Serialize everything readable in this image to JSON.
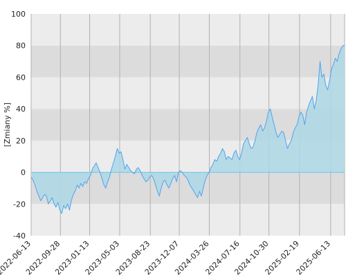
{
  "chart_data": {
    "type": "area",
    "title": "",
    "xlabel": "",
    "ylabel": "[Zmiany %]",
    "ylim": [
      -40,
      100
    ],
    "xlim": [
      "2022-06-13",
      "2025-08-03"
    ],
    "yticks": [
      -40,
      -20,
      0,
      20,
      40,
      60,
      80,
      100
    ],
    "xticks": [
      "2022-06-13",
      "2022-09-28",
      "2023-01-13",
      "2023-05-03",
      "2023-08-23",
      "2023-12-07",
      "2024-03-26",
      "2024-07-16",
      "2024-10-30",
      "2025-02-19",
      "2025-06-13"
    ],
    "grid": true,
    "legend": "none",
    "colors": {
      "line": "#4ea3ee",
      "fill": "#add8e6",
      "band_light": "#ececec",
      "band_dark": "#dcdcdc",
      "gridline": "#b0b0b0",
      "zero_line": "#66c7e8"
    },
    "series": [
      {
        "values": [
          [
            "2022-06-13",
            -3
          ],
          [
            "2022-06-20",
            -5
          ],
          [
            "2022-06-27",
            -8
          ],
          [
            "2022-07-04",
            -12
          ],
          [
            "2022-07-11",
            -15
          ],
          [
            "2022-07-18",
            -18
          ],
          [
            "2022-07-25",
            -16
          ],
          [
            "2022-08-01",
            -14
          ],
          [
            "2022-08-08",
            -15
          ],
          [
            "2022-08-15",
            -20
          ],
          [
            "2022-08-22",
            -18
          ],
          [
            "2022-08-29",
            -16
          ],
          [
            "2022-09-05",
            -20
          ],
          [
            "2022-09-12",
            -22
          ],
          [
            "2022-09-19",
            -19
          ],
          [
            "2022-09-26",
            -24
          ],
          [
            "2022-10-03",
            -26
          ],
          [
            "2022-10-10",
            -21
          ],
          [
            "2022-10-17",
            -23
          ],
          [
            "2022-10-24",
            -20
          ],
          [
            "2022-10-31",
            -24
          ],
          [
            "2022-11-07",
            -18
          ],
          [
            "2022-11-14",
            -14
          ],
          [
            "2022-11-21",
            -12
          ],
          [
            "2022-11-28",
            -8
          ],
          [
            "2022-12-05",
            -10
          ],
          [
            "2022-12-12",
            -7
          ],
          [
            "2022-12-19",
            -9
          ],
          [
            "2022-12-26",
            -6
          ],
          [
            "2023-01-02",
            -7
          ],
          [
            "2023-01-09",
            -4
          ],
          [
            "2023-01-16",
            -2
          ],
          [
            "2023-01-23",
            2
          ],
          [
            "2023-01-30",
            4
          ],
          [
            "2023-02-06",
            6
          ],
          [
            "2023-02-13",
            3
          ],
          [
            "2023-02-20",
            0
          ],
          [
            "2023-02-27",
            -4
          ],
          [
            "2023-03-06",
            -8
          ],
          [
            "2023-03-13",
            -10
          ],
          [
            "2023-03-20",
            -6
          ],
          [
            "2023-03-27",
            -3
          ],
          [
            "2023-04-03",
            2
          ],
          [
            "2023-04-10",
            6
          ],
          [
            "2023-04-17",
            10
          ],
          [
            "2023-04-24",
            15
          ],
          [
            "2023-05-01",
            12
          ],
          [
            "2023-05-08",
            13
          ],
          [
            "2023-05-15",
            8
          ],
          [
            "2023-05-22",
            2
          ],
          [
            "2023-05-29",
            5
          ],
          [
            "2023-06-05",
            3
          ],
          [
            "2023-06-12",
            1
          ],
          [
            "2023-06-19",
            0
          ],
          [
            "2023-06-26",
            -1
          ],
          [
            "2023-07-03",
            2
          ],
          [
            "2023-07-10",
            3
          ],
          [
            "2023-07-17",
            1
          ],
          [
            "2023-07-24",
            -2
          ],
          [
            "2023-07-31",
            -4
          ],
          [
            "2023-08-07",
            -6
          ],
          [
            "2023-08-14",
            -5
          ],
          [
            "2023-08-21",
            -3
          ],
          [
            "2023-08-28",
            -2
          ],
          [
            "2023-09-04",
            -4
          ],
          [
            "2023-09-11",
            -8
          ],
          [
            "2023-09-18",
            -12
          ],
          [
            "2023-09-25",
            -15
          ],
          [
            "2023-10-02",
            -10
          ],
          [
            "2023-10-09",
            -6
          ],
          [
            "2023-10-16",
            -5
          ],
          [
            "2023-10-23",
            -8
          ],
          [
            "2023-10-30",
            -10
          ],
          [
            "2023-11-06",
            -7
          ],
          [
            "2023-11-13",
            -4
          ],
          [
            "2023-11-20",
            -2
          ],
          [
            "2023-11-27",
            -6
          ],
          [
            "2023-12-04",
            0
          ],
          [
            "2023-12-11",
            1
          ],
          [
            "2023-12-18",
            0
          ],
          [
            "2023-12-25",
            -2
          ],
          [
            "2024-01-01",
            -3
          ],
          [
            "2024-01-08",
            -5
          ],
          [
            "2024-01-15",
            -8
          ],
          [
            "2024-01-22",
            -10
          ],
          [
            "2024-01-29",
            -12
          ],
          [
            "2024-02-05",
            -14
          ],
          [
            "2024-02-12",
            -16
          ],
          [
            "2024-02-19",
            -12
          ],
          [
            "2024-02-26",
            -15
          ],
          [
            "2024-03-04",
            -10
          ],
          [
            "2024-03-11",
            -5
          ],
          [
            "2024-03-18",
            -2
          ],
          [
            "2024-03-25",
            0
          ],
          [
            "2024-04-01",
            3
          ],
          [
            "2024-04-08",
            5
          ],
          [
            "2024-04-15",
            8
          ],
          [
            "2024-04-22",
            7
          ],
          [
            "2024-04-29",
            10
          ],
          [
            "2024-05-06",
            12
          ],
          [
            "2024-05-13",
            15
          ],
          [
            "2024-05-20",
            13
          ],
          [
            "2024-05-27",
            8
          ],
          [
            "2024-06-03",
            10
          ],
          [
            "2024-06-10",
            9
          ],
          [
            "2024-06-17",
            8
          ],
          [
            "2024-06-24",
            12
          ],
          [
            "2024-07-01",
            14
          ],
          [
            "2024-07-08",
            10
          ],
          [
            "2024-07-15",
            8
          ],
          [
            "2024-07-22",
            12
          ],
          [
            "2024-07-29",
            18
          ],
          [
            "2024-08-05",
            20
          ],
          [
            "2024-08-12",
            22
          ],
          [
            "2024-08-19",
            18
          ],
          [
            "2024-08-26",
            15
          ],
          [
            "2024-09-02",
            16
          ],
          [
            "2024-09-09",
            20
          ],
          [
            "2024-09-16",
            25
          ],
          [
            "2024-09-23",
            28
          ],
          [
            "2024-09-30",
            30
          ],
          [
            "2024-10-07",
            26
          ],
          [
            "2024-10-14",
            28
          ],
          [
            "2024-10-21",
            32
          ],
          [
            "2024-10-28",
            38
          ],
          [
            "2024-11-04",
            40
          ],
          [
            "2024-11-11",
            35
          ],
          [
            "2024-11-18",
            30
          ],
          [
            "2024-11-25",
            25
          ],
          [
            "2024-12-02",
            22
          ],
          [
            "2024-12-09",
            24
          ],
          [
            "2024-12-16",
            26
          ],
          [
            "2024-12-23",
            25
          ],
          [
            "2024-12-30",
            20
          ],
          [
            "2025-01-06",
            15
          ],
          [
            "2025-01-13",
            18
          ],
          [
            "2025-01-20",
            20
          ],
          [
            "2025-01-27",
            25
          ],
          [
            "2025-02-03",
            28
          ],
          [
            "2025-02-10",
            30
          ],
          [
            "2025-02-17",
            35
          ],
          [
            "2025-02-24",
            38
          ],
          [
            "2025-03-03",
            36
          ],
          [
            "2025-03-10",
            30
          ],
          [
            "2025-03-17",
            38
          ],
          [
            "2025-03-24",
            42
          ],
          [
            "2025-03-31",
            45
          ],
          [
            "2025-04-07",
            48
          ],
          [
            "2025-04-14",
            40
          ],
          [
            "2025-04-21",
            45
          ],
          [
            "2025-04-28",
            55
          ],
          [
            "2025-05-05",
            70
          ],
          [
            "2025-05-12",
            60
          ],
          [
            "2025-05-19",
            62
          ],
          [
            "2025-05-26",
            55
          ],
          [
            "2025-06-02",
            52
          ],
          [
            "2025-06-09",
            58
          ],
          [
            "2025-06-16",
            65
          ],
          [
            "2025-06-23",
            68
          ],
          [
            "2025-06-30",
            72
          ],
          [
            "2025-07-07",
            70
          ],
          [
            "2025-07-14",
            75
          ],
          [
            "2025-07-21",
            78
          ],
          [
            "2025-07-28",
            80
          ],
          [
            "2025-08-03",
            80
          ]
        ]
      }
    ]
  }
}
